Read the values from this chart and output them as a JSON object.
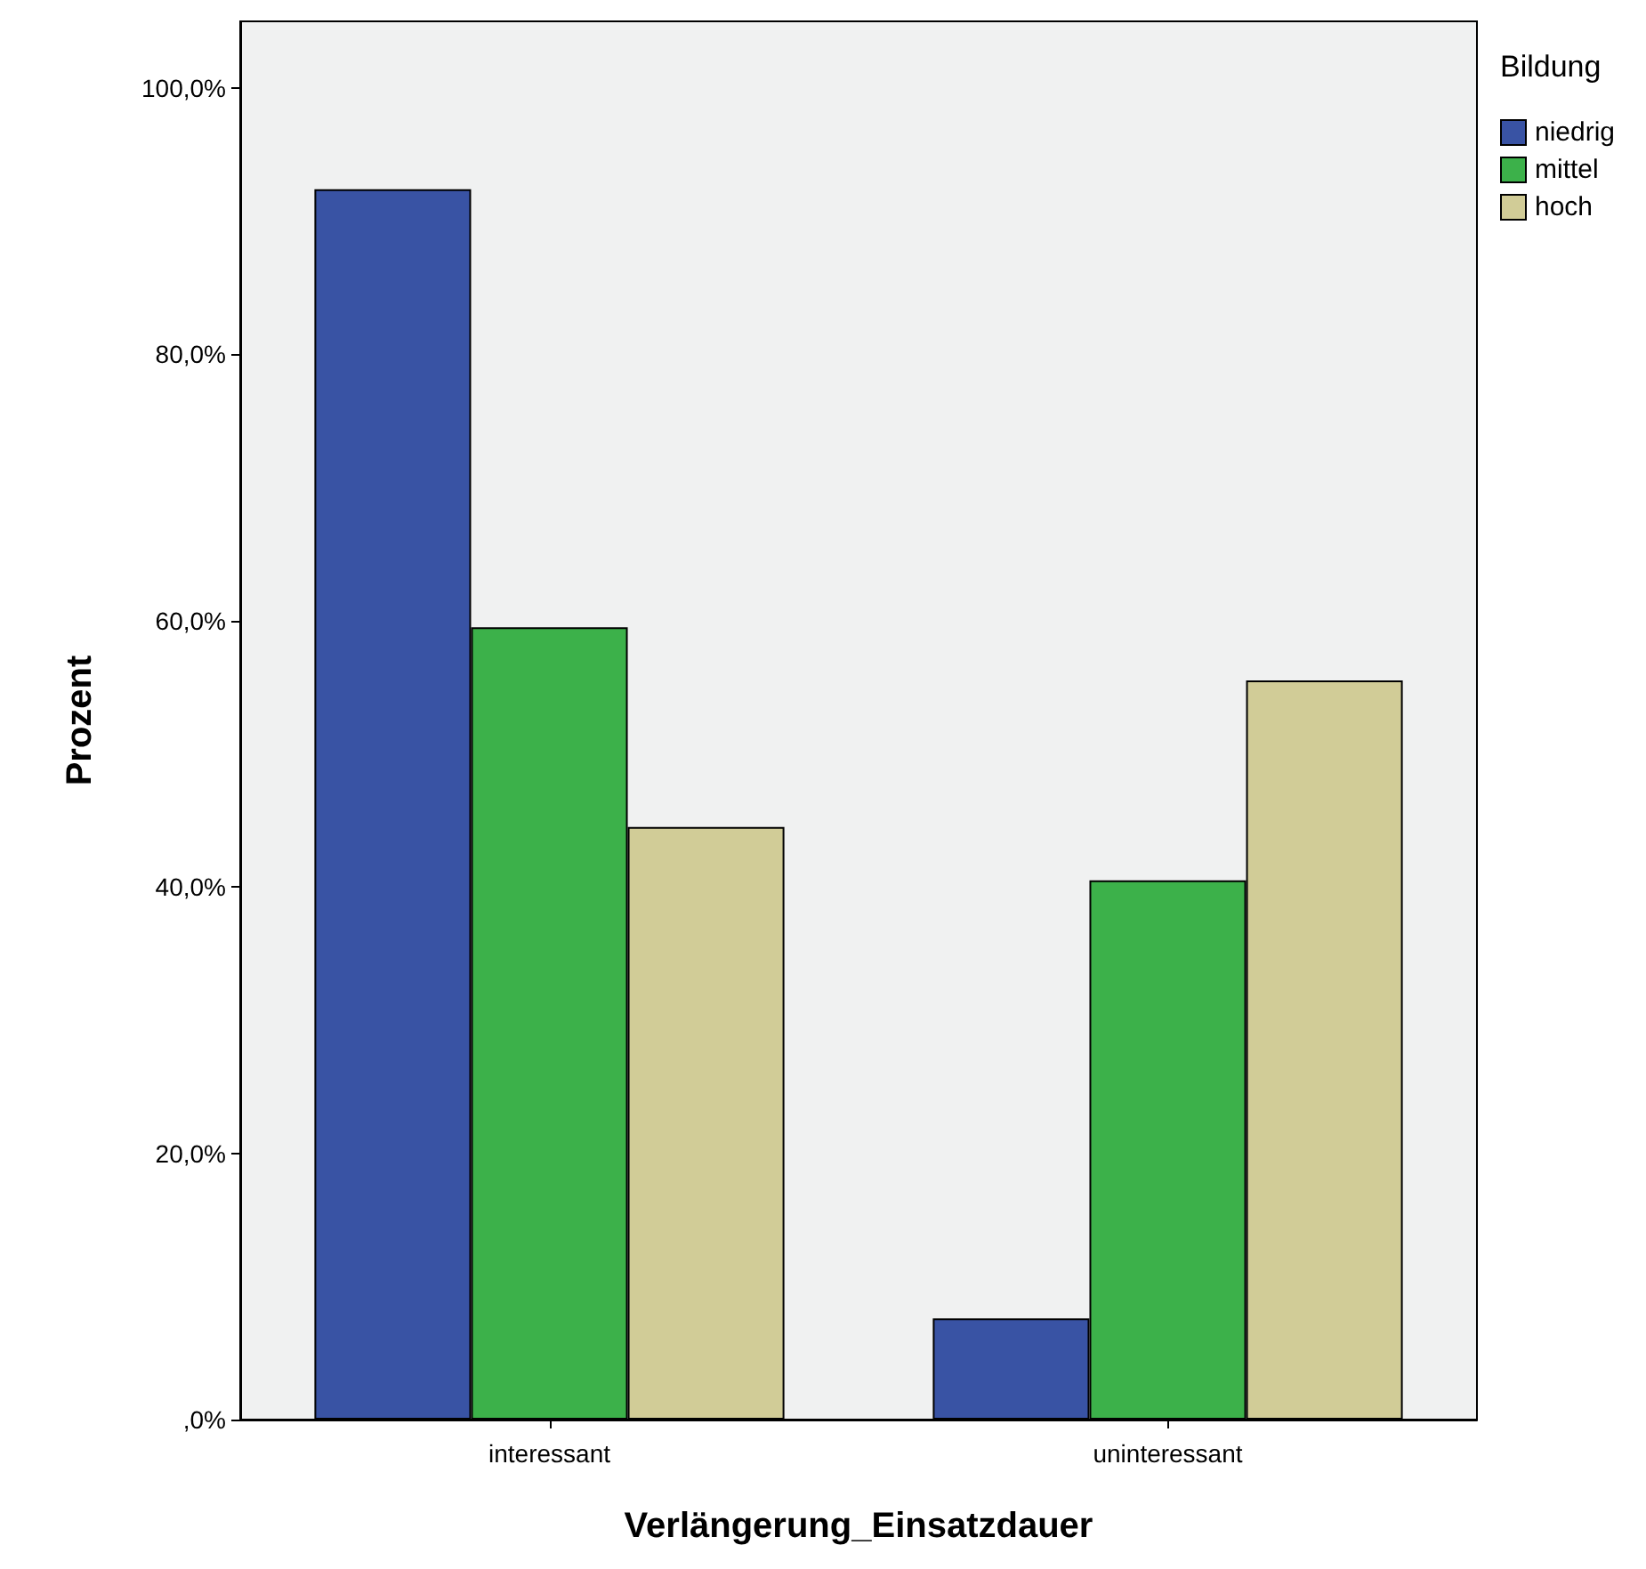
{
  "chart_data": {
    "type": "bar",
    "xlabel": "Verlängerung_Einsatzdauer",
    "ylabel": "Prozent",
    "legend_title": "Bildung",
    "categories": [
      "interessant",
      "uninteressant"
    ],
    "series": [
      {
        "name": "niedrig",
        "color": "#3953a4",
        "values": [
          92.4,
          7.6
        ]
      },
      {
        "name": "mittel",
        "color": "#3cb14a",
        "values": [
          59.5,
          40.5
        ]
      },
      {
        "name": "hoch",
        "color": "#d1cc97",
        "values": [
          44.5,
          55.5
        ]
      }
    ],
    "ylim": [
      0,
      105
    ],
    "yticks": [
      {
        "value": 0,
        "label": ",0%"
      },
      {
        "value": 20,
        "label": "20,0%"
      },
      {
        "value": 40,
        "label": "40,0%"
      },
      {
        "value": 60,
        "label": "60,0%"
      },
      {
        "value": 80,
        "label": "80,0%"
      },
      {
        "value": 100,
        "label": "100,0%"
      }
    ],
    "grid": false,
    "legend": "top right"
  }
}
